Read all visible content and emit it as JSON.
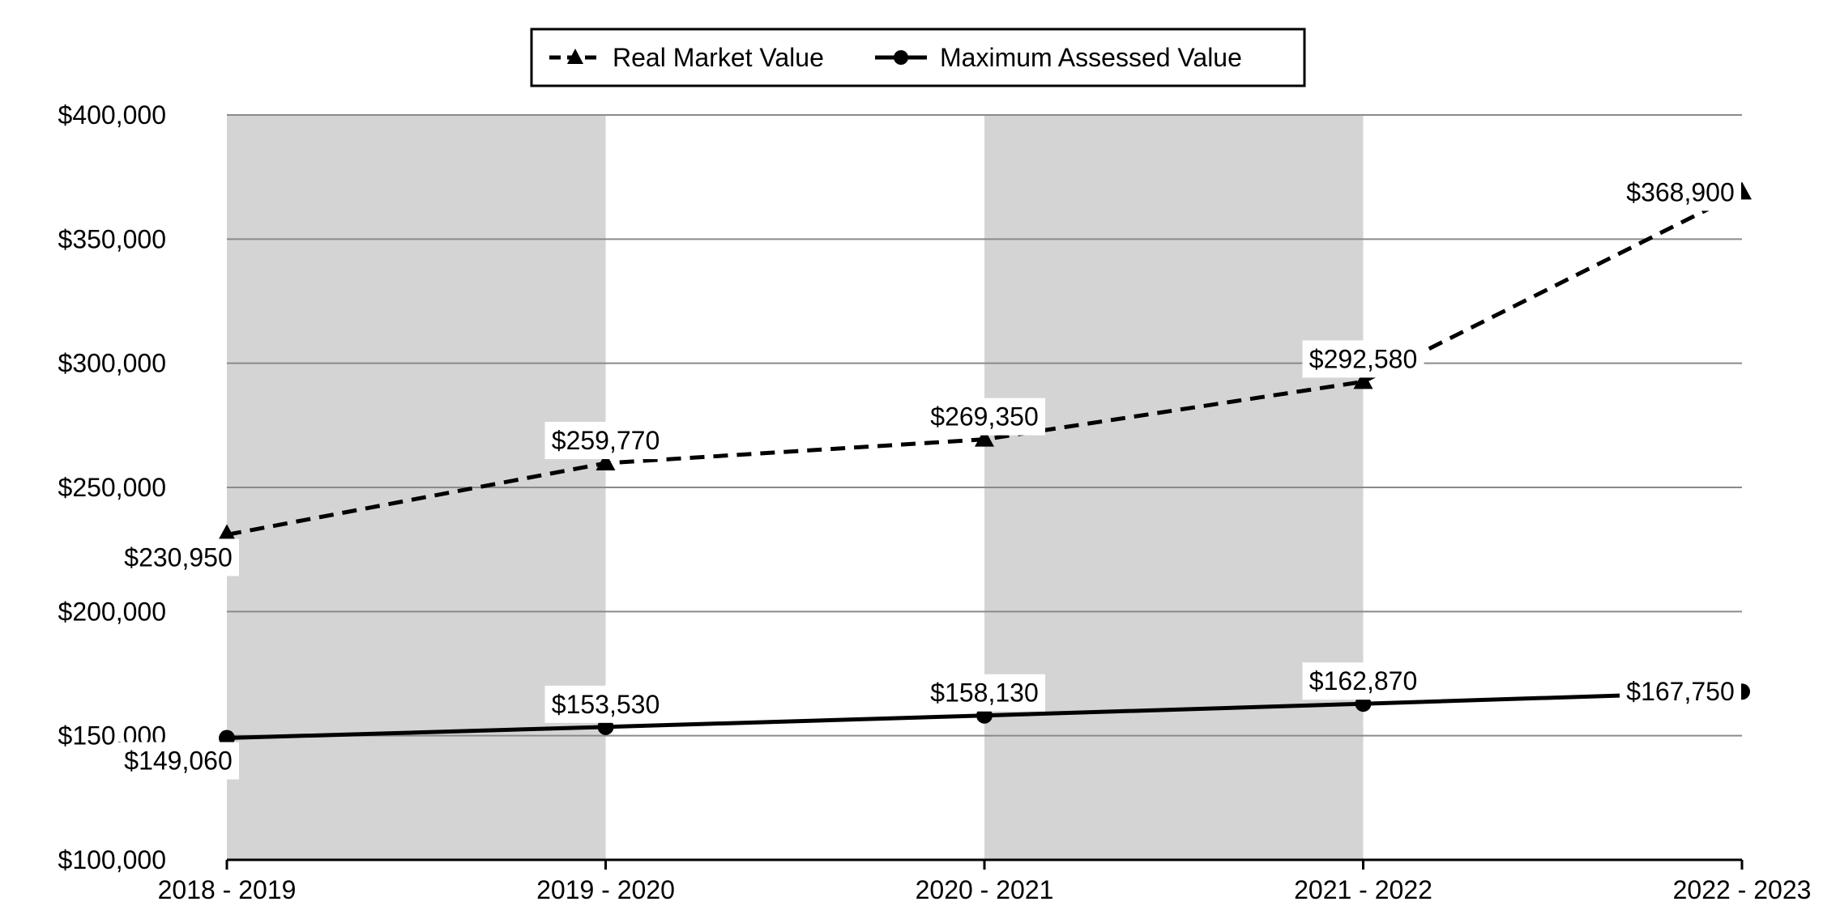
{
  "chart_data": {
    "type": "line",
    "title": "",
    "xlabel": "",
    "ylabel": "",
    "categories": [
      "2018 - 2019",
      "2019 - 2020",
      "2020 - 2021",
      "2021 - 2022",
      "2022 - 2023"
    ],
    "ylim": [
      100000,
      400000
    ],
    "yticks": [
      100000,
      150000,
      200000,
      250000,
      300000,
      350000,
      400000
    ],
    "ytick_labels": [
      "$100,000",
      "$150,000",
      "$200,000",
      "$250,000",
      "$300,000",
      "$350,000",
      "$400,000"
    ],
    "grid": "horizontal",
    "shaded_bands": [
      "2018 - 2019",
      "2020 - 2021"
    ],
    "band_color": "#d4d4d4",
    "legend": {
      "placement": "top-center"
    },
    "series": [
      {
        "name": "Real Market Value",
        "line_style": "dashed",
        "marker": "triangle",
        "color": "#000000",
        "values": [
          230950,
          259770,
          269350,
          292580,
          368900
        ],
        "labels": [
          "$230,950",
          "$259,770",
          "$269,350",
          "$292,580",
          "$368,900"
        ]
      },
      {
        "name": "Maximum Assessed Value",
        "line_style": "solid",
        "marker": "circle",
        "color": "#000000",
        "values": [
          149060,
          153530,
          158130,
          162870,
          167750
        ],
        "labels": [
          "$149,060",
          "$153,530",
          "$158,130",
          "$162,870",
          "$167,750"
        ]
      }
    ]
  }
}
